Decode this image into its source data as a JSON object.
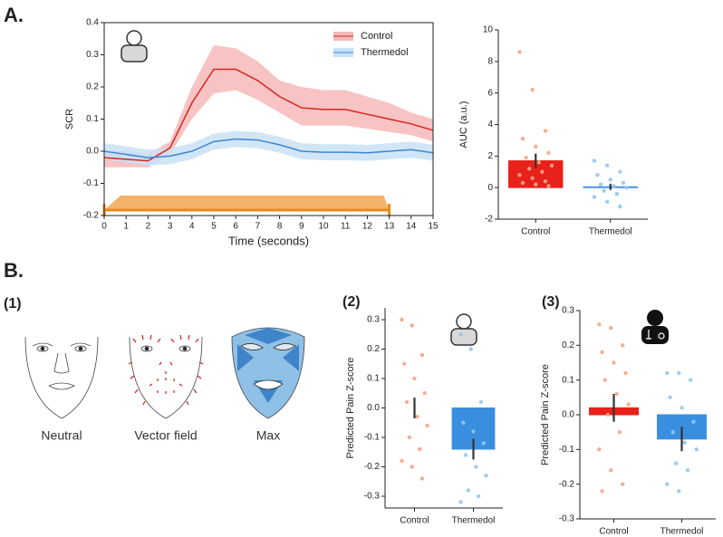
{
  "panels": {
    "a": "A.",
    "b": "B.",
    "b1": "(1)",
    "b2": "(2)",
    "b3": "(3)"
  },
  "faces": [
    "Neutral",
    "Vector field",
    "Max"
  ],
  "chart_data": [
    {
      "type": "line",
      "xlabel": "Time (seconds)",
      "ylabel": "SCR",
      "x": [
        0,
        1,
        2,
        3,
        4,
        5,
        6,
        7,
        8,
        9,
        10,
        11,
        12,
        13,
        14,
        15
      ],
      "series": [
        {
          "name": "Control",
          "color": "#d7261e",
          "band_color": "#f6b9b9",
          "values": [
            -0.02,
            -0.025,
            -0.03,
            0.01,
            0.15,
            0.255,
            0.255,
            0.22,
            0.17,
            0.135,
            0.13,
            0.13,
            0.115,
            0.1,
            0.085,
            0.065
          ],
          "upper": [
            0.0,
            0.0,
            -0.01,
            0.03,
            0.2,
            0.33,
            0.32,
            0.28,
            0.22,
            0.2,
            0.19,
            0.19,
            0.17,
            0.15,
            0.12,
            0.1
          ],
          "lower": [
            -0.05,
            -0.05,
            -0.05,
            -0.01,
            0.1,
            0.18,
            0.19,
            0.16,
            0.12,
            0.08,
            0.08,
            0.08,
            0.07,
            0.06,
            0.05,
            0.03
          ]
        },
        {
          "name": "Thermedol",
          "color": "#3b87d4",
          "band_color": "#c8e2f6",
          "values": [
            0.0,
            -0.01,
            -0.02,
            -0.015,
            0.0,
            0.03,
            0.038,
            0.035,
            0.02,
            0.0,
            -0.003,
            -0.003,
            -0.005,
            0.0,
            0.005,
            -0.005
          ],
          "upper": [
            0.025,
            0.015,
            0.005,
            0.01,
            0.025,
            0.055,
            0.063,
            0.06,
            0.045,
            0.025,
            0.022,
            0.022,
            0.02,
            0.025,
            0.03,
            0.02
          ],
          "lower": [
            -0.025,
            -0.035,
            -0.045,
            -0.04,
            -0.025,
            0.005,
            0.013,
            0.01,
            -0.005,
            -0.025,
            -0.028,
            -0.028,
            -0.03,
            -0.025,
            -0.02,
            -0.03
          ]
        }
      ],
      "stimulus": [
        0,
        13
      ],
      "stimulus_color": "#ef9a3a",
      "xlim": [
        0,
        15
      ],
      "xticks": [
        0,
        1,
        2,
        3,
        4,
        5,
        6,
        7,
        8,
        9,
        10,
        11,
        12,
        13,
        14,
        15
      ],
      "ylim": [
        -0.2,
        0.4
      ],
      "yticks": [
        -0.2,
        -0.1,
        {
          "value": 0,
          "label": "0.0"
        },
        0.1,
        0.2,
        0.3,
        0.4
      ],
      "legend": "upper right"
    },
    {
      "type": "bar",
      "ylabel": "AUC (a.u.)",
      "categories": [
        "Control",
        "Thermedol"
      ],
      "values": [
        1.7,
        0.05
      ],
      "errors": [
        0.45,
        0.2
      ],
      "colors": [
        "#e8211b",
        "#3a8ee0"
      ],
      "point_colors": [
        "#f4a58a",
        "#92c8ef"
      ],
      "points": [
        [
          8.6,
          6.2,
          3.6,
          3.1,
          2.6,
          2.2,
          1.9,
          1.6,
          1.4,
          1.2,
          1.0,
          0.8,
          0.6,
          0.4,
          0.3,
          0.2,
          0.1
        ],
        [
          1.7,
          1.4,
          1.0,
          0.8,
          0.5,
          0.3,
          0.2,
          0.1,
          0.0,
          -0.2,
          -0.4,
          -0.6,
          -0.9,
          -1.2
        ]
      ],
      "ylim": [
        -2,
        10
      ],
      "yticks": [
        -2,
        0,
        2,
        4,
        6,
        8,
        10
      ]
    },
    {
      "type": "bar",
      "ylabel": "Predicted Pain Z-score",
      "categories": [
        "Control",
        "Thermedol"
      ],
      "values": [
        0.0,
        -0.14
      ],
      "errors": [
        0.035,
        0.035
      ],
      "colors": [
        "#e8211b",
        "#3a8ee0"
      ],
      "point_colors": [
        "#f4a58a",
        "#92c8ef"
      ],
      "points": [
        [
          0.3,
          0.28,
          0.18,
          0.15,
          0.1,
          0.05,
          0.02,
          -0.03,
          -0.06,
          -0.1,
          -0.14,
          -0.18,
          -0.2,
          -0.24
        ],
        [
          0.25,
          0.2,
          0.02,
          -0.05,
          -0.08,
          -0.12,
          -0.16,
          -0.2,
          -0.23,
          -0.28,
          -0.3,
          -0.32
        ]
      ],
      "ylim": [
        -0.34,
        0.34
      ],
      "yticks": [
        -0.3,
        -0.2,
        -0.1,
        {
          "value": 0,
          "label": "0.0"
        },
        0.1,
        0.2,
        0.3
      ]
    },
    {
      "type": "bar",
      "ylabel": "Predicted Pain Z-score",
      "categories": [
        "Control",
        "Thermedol"
      ],
      "values": [
        0.02,
        -0.07
      ],
      "errors": [
        0.04,
        0.035
      ],
      "colors": [
        "#e8211b",
        "#3a8ee0"
      ],
      "point_colors": [
        "#f4a58a",
        "#92c8ef"
      ],
      "points": [
        [
          0.26,
          0.25,
          0.2,
          0.18,
          0.15,
          0.12,
          0.1,
          0.06,
          0.03,
          0.0,
          -0.05,
          -0.1,
          -0.16,
          -0.2,
          -0.22
        ],
        [
          0.12,
          0.12,
          0.1,
          0.05,
          0.02,
          -0.02,
          -0.05,
          -0.08,
          -0.1,
          -0.14,
          -0.16,
          -0.2,
          -0.22
        ]
      ],
      "ylim": [
        -0.3,
        0.3
      ],
      "yticks": [
        -0.3,
        -0.2,
        -0.1,
        {
          "value": 0,
          "label": "0.0"
        },
        0.1,
        0.2,
        0.3
      ]
    }
  ]
}
